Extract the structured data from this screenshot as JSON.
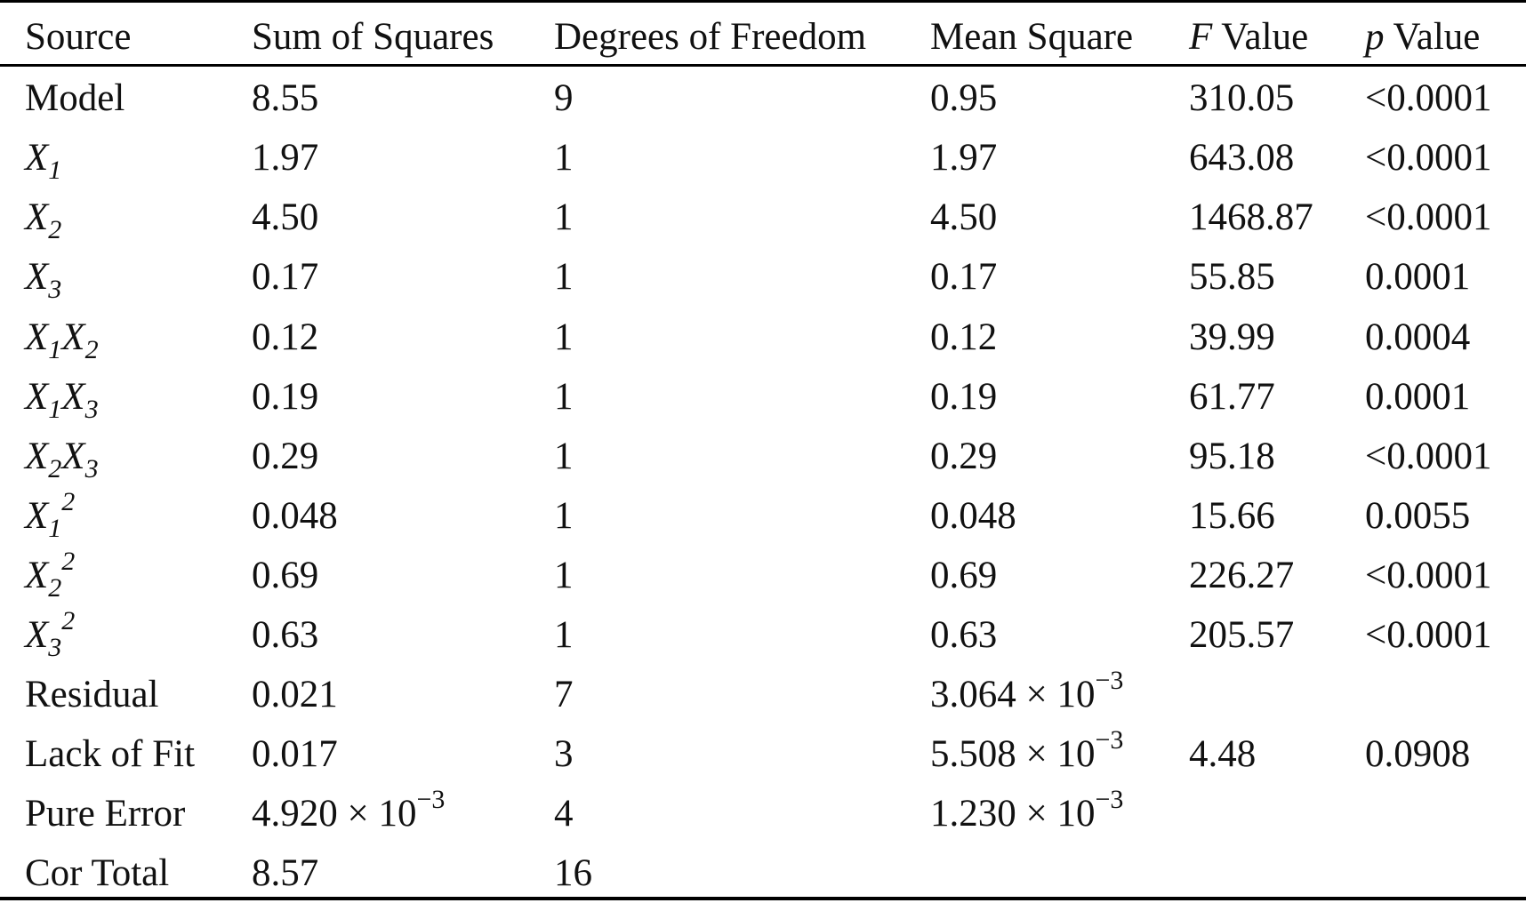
{
  "table": {
    "headers": {
      "source": "Source",
      "sum_of_squares": "Sum of Squares",
      "degrees_of_freedom": "Degrees of Freedom",
      "mean_square": "Mean Square",
      "f_symbol": "F",
      "f_suffix": " Value",
      "p_symbol": "p",
      "p_suffix": " Value"
    },
    "rows": [
      {
        "source": "Model",
        "ss": "8.55",
        "df": "9",
        "ms": "0.95",
        "f": "310.05",
        "p": "<0.0001"
      },
      {
        "source_var1": "X",
        "source_sub1": "1",
        "ss": "1.97",
        "df": "1",
        "ms": "1.97",
        "f": "643.08",
        "p": "<0.0001"
      },
      {
        "source_var1": "X",
        "source_sub1": "2",
        "ss": "4.50",
        "df": "1",
        "ms": "4.50",
        "f": "1468.87",
        "p": "<0.0001"
      },
      {
        "source_var1": "X",
        "source_sub1": "3",
        "ss": "0.17",
        "df": "1",
        "ms": "0.17",
        "f": "55.85",
        "p": "0.0001"
      },
      {
        "source_var1": "X",
        "source_sub1": "1",
        "source_var2": "X",
        "source_sub2": "2",
        "ss": "0.12",
        "df": "1",
        "ms": "0.12",
        "f": "39.99",
        "p": "0.0004"
      },
      {
        "source_var1": "X",
        "source_sub1": "1",
        "source_var2": "X",
        "source_sub2": "3",
        "ss": "0.19",
        "df": "1",
        "ms": "0.19",
        "f": "61.77",
        "p": "0.0001"
      },
      {
        "source_var1": "X",
        "source_sub1": "2",
        "source_var2": "X",
        "source_sub2": "3",
        "ss": "0.29",
        "df": "1",
        "ms": "0.29",
        "f": "95.18",
        "p": "<0.0001"
      },
      {
        "source_var1": "X",
        "source_sub1": "1",
        "source_sup": "2",
        "ss": "0.048",
        "df": "1",
        "ms": "0.048",
        "f": "15.66",
        "p": "0.0055"
      },
      {
        "source_var1": "X",
        "source_sub1": "2",
        "source_sup": "2",
        "ss": "0.69",
        "df": "1",
        "ms": "0.69",
        "f": "226.27",
        "p": "<0.0001"
      },
      {
        "source_var1": "X",
        "source_sub1": "3",
        "source_sup": "2",
        "ss": "0.63",
        "df": "1",
        "ms": "0.63",
        "f": "205.57",
        "p": "<0.0001"
      },
      {
        "source": "Residual",
        "ss": "0.021",
        "df": "7",
        "ms_mantissa": "3.064 × 10",
        "ms_exp": "−3",
        "f": "",
        "p": ""
      },
      {
        "source": "Lack of Fit",
        "ss": "0.017",
        "df": "3",
        "ms_mantissa": "5.508 × 10",
        "ms_exp": "−3",
        "f": "4.48",
        "p": "0.0908"
      },
      {
        "source": "Pure Error",
        "ss_mantissa": "4.920 × 10",
        "ss_exp": "−3",
        "df": "4",
        "ms_mantissa": "1.230 × 10",
        "ms_exp": "−3",
        "f": "",
        "p": ""
      },
      {
        "source": "Cor Total",
        "ss": "8.57",
        "df": "16",
        "ms": "",
        "f": "",
        "p": ""
      }
    ]
  }
}
